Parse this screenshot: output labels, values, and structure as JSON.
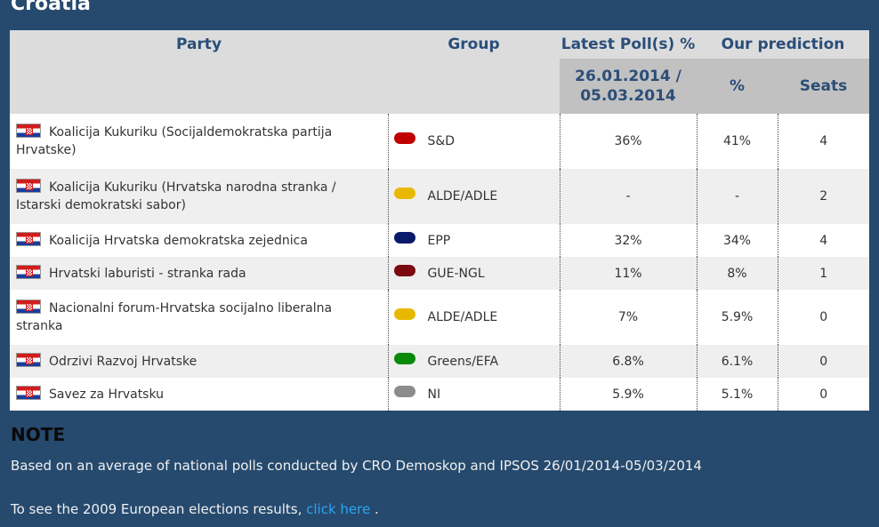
{
  "page": {
    "country": "Croatia",
    "brand_bg": "#264a6e",
    "header_text_color": "#2a4e78",
    "link_color": "#2aa4f4"
  },
  "table": {
    "headers": {
      "party": "Party",
      "group": "Group",
      "latest_polls": "Latest Poll(s) %",
      "our_prediction": "Our prediction",
      "poll_dates": "26.01.2014 / 05.03.2014",
      "percent": "%",
      "seats": "Seats"
    },
    "rows": [
      {
        "flag": "croatia-flag-icon",
        "party": "Koalicija Kukuriku (Socijaldemokratska partija Hrvatske)",
        "group_color": "#c00000",
        "group": "S&D",
        "poll": "36%",
        "pred": "41%",
        "seats": "4"
      },
      {
        "flag": "croatia-flag-icon",
        "party": "Koalicija Kukuriku (Hrvatska narodna stranka / Istarski demokratski sabor)",
        "group_color": "#e8b800",
        "group": "ALDE/ADLE",
        "poll": "-",
        "pred": "-",
        "seats": "2"
      },
      {
        "flag": "croatia-flag-icon",
        "party": "Koalicija Hrvatska demokratska zejednica",
        "group_color": "#0a1a6b",
        "group": "EPP",
        "poll": "32%",
        "pred": "34%",
        "seats": "4"
      },
      {
        "flag": "croatia-flag-icon",
        "party": "Hrvatski laburisti - stranka rada",
        "group_color": "#7a0a10",
        "group": "GUE-NGL",
        "poll": "11%",
        "pred": "8%",
        "seats": "1"
      },
      {
        "flag": "croatia-flag-icon",
        "party": "Nacionalni forum-Hrvatska socijalno liberalna stranka",
        "group_color": "#e8b800",
        "group": "ALDE/ADLE",
        "poll": "7%",
        "pred": "5.9%",
        "seats": "0"
      },
      {
        "flag": "croatia-flag-icon",
        "party": "Odrzivi Razvoj Hrvatske",
        "group_color": "#0a8a0a",
        "group": "Greens/EFA",
        "poll": "6.8%",
        "pred": "6.1%",
        "seats": "0"
      },
      {
        "flag": "croatia-flag-icon",
        "party": "Savez za Hrvatsku",
        "group_color": "#8c8c8c",
        "group": "NI",
        "poll": "5.9%",
        "pred": "5.1%",
        "seats": "0"
      }
    ]
  },
  "note": {
    "heading": "NOTE",
    "text": "Based on an average of national polls conducted by CRO Demoskop and IPSOS 26/01/2014-05/03/2014",
    "see_prefix": "To see the 2009 European elections results,",
    "link_label": "click here",
    "see_suffix": "."
  }
}
